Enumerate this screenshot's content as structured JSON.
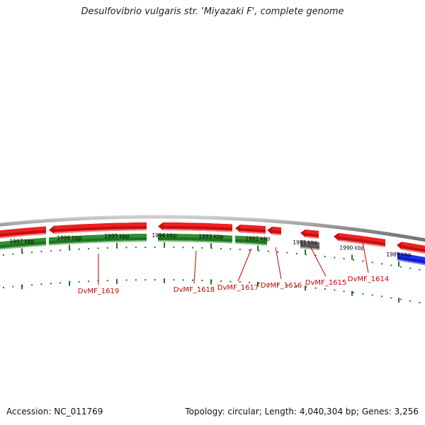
{
  "title": "Desulfovibrio vulgaris str. 'Miyazaki F', complete genome",
  "accession_text": "Accession: NC_011769",
  "summary_text": "Topology: circular; Length: 4,040,304 bp; Genes: 3,256",
  "colors": {
    "forward_cds": "#ee1111",
    "reverse_cds": "#228822",
    "rna_gene": "#666666",
    "highlight_gene": "#1122ee",
    "backbone": "#8c8c8c",
    "scale_ticks": "#227722",
    "gene_labels": "#cc0000"
  },
  "scale_labels": [
    "1997 kbp",
    "1996 kbp",
    "1995 kbp",
    "1994 kbp",
    "1993 kbp",
    "1992 kbp",
    "1991 kbp",
    "1990 kbp",
    "1989 kbp"
  ],
  "gene_labels": [
    "DvMF_1619",
    "DvMF_1618",
    "DvMF_1617",
    "DvMF_1616",
    "DvMF_1615",
    "DvMF_1614"
  ]
}
